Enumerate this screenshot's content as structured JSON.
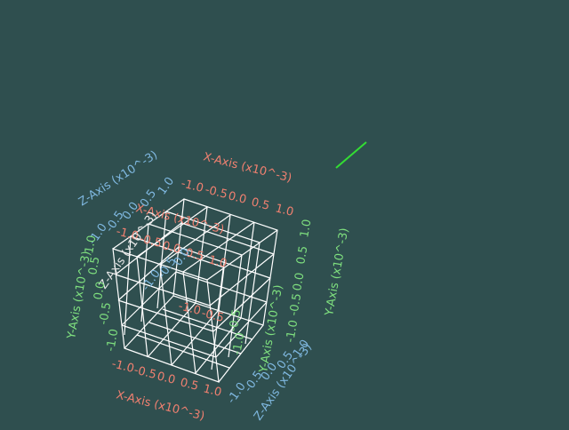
{
  "scene": {
    "background": "#2f4f4f",
    "cube_edge_color": "#ffffff",
    "actor_color": "#33dd33"
  },
  "axes": {
    "x": {
      "title": "X-Axis (x10^-3)",
      "ticks": [
        "-1.0",
        "-0.5",
        "0.0",
        "0.5",
        "1.0"
      ],
      "color": "#f08070"
    },
    "y": {
      "title": "Y-Axis (x10^-3)",
      "ticks": [
        "-1.0",
        "-0.5",
        "0.0",
        "0.5",
        "1.0"
      ],
      "color": "#7fe07f"
    },
    "z": {
      "title": "Z-Axis (x10^-3)",
      "ticks": [
        "-1.0",
        "-0.5",
        "0.0",
        "0.5",
        "1.0"
      ],
      "color": "#7fb8e0"
    }
  }
}
